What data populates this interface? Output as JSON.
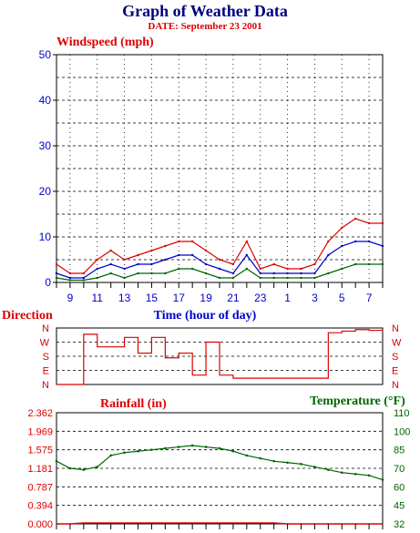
{
  "header": {
    "title": "Graph of Weather Data",
    "date": "DATE: September 23 2001"
  },
  "colors": {
    "navy": "#000080",
    "blue": "#0000cc",
    "red": "#dd0000",
    "green": "#006400",
    "grid": "#000000"
  },
  "chart_data": [
    {
      "type": "line",
      "title": "Windspeed (mph)",
      "xlabel": "Time (hour of day)",
      "ylim": [
        0,
        50
      ],
      "yticks": [
        "0",
        "10",
        "20",
        "30",
        "40",
        "50"
      ],
      "xticks": [
        "9",
        "11",
        "13",
        "15",
        "17",
        "19",
        "21",
        "23",
        "1",
        "3",
        "5",
        "7"
      ],
      "x": [
        8,
        9,
        10,
        11,
        12,
        13,
        14,
        15,
        16,
        17,
        18,
        19,
        20,
        21,
        22,
        23,
        24,
        25,
        26,
        27,
        28,
        29,
        30,
        31,
        32
      ],
      "series": [
        {
          "color": "red",
          "values": [
            4,
            2,
            2,
            5,
            7,
            5,
            6,
            7,
            8,
            9,
            9,
            7,
            5,
            4,
            9,
            3,
            4,
            3,
            3,
            4,
            9,
            12,
            14,
            13,
            13
          ]
        },
        {
          "color": "blue",
          "values": [
            2,
            1,
            1,
            3,
            4,
            3,
            4,
            4,
            5,
            6,
            6,
            4,
            3,
            2,
            6,
            2,
            2,
            2,
            2,
            2,
            6,
            8,
            9,
            9,
            8
          ]
        },
        {
          "color": "green",
          "values": [
            1,
            0.5,
            0.5,
            1,
            2,
            1,
            2,
            2,
            2,
            3,
            3,
            2,
            1,
            1,
            3,
            1,
            1,
            1,
            1,
            1,
            2,
            3,
            4,
            4,
            4
          ]
        }
      ],
      "grid": true
    },
    {
      "type": "line",
      "title": "Direction",
      "ylabels": [
        "N",
        "W",
        "S",
        "E",
        "N"
      ],
      "x": [
        8,
        9,
        10,
        11,
        12,
        13,
        14,
        15,
        16,
        17,
        18,
        19,
        20,
        21,
        22,
        23,
        24,
        25,
        26,
        27,
        28,
        29,
        30,
        31,
        32
      ],
      "values": [
        0,
        0,
        320,
        240,
        240,
        300,
        200,
        300,
        170,
        200,
        60,
        270,
        60,
        40,
        40,
        40,
        40,
        40,
        40,
        40,
        330,
        340,
        350,
        345,
        340
      ],
      "ylim": [
        0,
        360
      ]
    },
    {
      "type": "line",
      "title": "Rainfall (in)",
      "y2title": "Temperature (°F)",
      "yticks": [
        "0.000",
        "0.394",
        "0.787",
        "1.181",
        "1.575",
        "1.969",
        "2.362"
      ],
      "y2ticks": [
        "32",
        "45",
        "60",
        "70",
        "85",
        "100",
        "110"
      ],
      "ylim": [
        0,
        2.362
      ],
      "y2lim": [
        32,
        110
      ],
      "x": [
        8,
        9,
        10,
        11,
        12,
        13,
        14,
        15,
        16,
        17,
        18,
        19,
        20,
        21,
        22,
        23,
        24,
        25,
        26,
        27,
        28,
        29,
        30,
        31,
        32
      ],
      "series": [
        {
          "name": "Rainfall (in)",
          "color": "red",
          "values": [
            0,
            0,
            0.02,
            0.02,
            0.02,
            0.02,
            0.02,
            0.02,
            0.02,
            0.02,
            0.02,
            0.02,
            0.02,
            0.02,
            0.02,
            0.02,
            0.02,
            0,
            0,
            0,
            0,
            0,
            0,
            0,
            0
          ]
        },
        {
          "name": "Temperature (°F)",
          "color": "green",
          "values": [
            76,
            71,
            70,
            72,
            80,
            82,
            83,
            84,
            85,
            86,
            87,
            86,
            85,
            83,
            80,
            78,
            76,
            75,
            74,
            72,
            70,
            68,
            67,
            66,
            63
          ]
        }
      ],
      "grid": true
    }
  ]
}
